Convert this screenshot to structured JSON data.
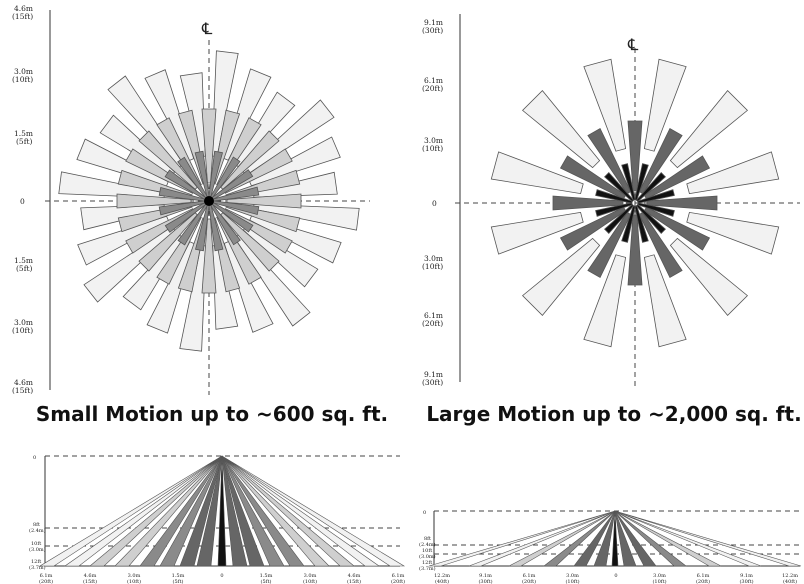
{
  "diagrams": {
    "small": {
      "caption": "Small Motion up to ~600 sq. ft.",
      "centerline_symbol": "℄",
      "labels": [
        {
          "m": "4.6m",
          "ft": "(15ft)"
        },
        {
          "m": "3.0m",
          "ft": "(10ft)"
        },
        {
          "m": "1.5m",
          "ft": "(5ft)"
        },
        {
          "m": "0",
          "ft": ""
        },
        {
          "m": "1.5m",
          "ft": "(5ft)"
        },
        {
          "m": "3.0m",
          "ft": "(10ft)"
        },
        {
          "m": "4.6m",
          "ft": "(15ft)"
        }
      ]
    },
    "large": {
      "caption": "Large Motion up to ~2,000 sq. ft.",
      "centerline_symbol": "℄",
      "labels": [
        {
          "m": "9.1m",
          "ft": "(30ft)"
        },
        {
          "m": "6.1m",
          "ft": "(20ft)"
        },
        {
          "m": "3.0m",
          "ft": "(10ft)"
        },
        {
          "m": "0",
          "ft": ""
        },
        {
          "m": "3.0m",
          "ft": "(10ft)"
        },
        {
          "m": "6.1m",
          "ft": "(20ft)"
        },
        {
          "m": "9.1m",
          "ft": "(30ft)"
        }
      ]
    },
    "side_small": {
      "top_label": "0",
      "height_labels": [
        {
          "a": "8ft",
          "b": "(2.4m)"
        },
        {
          "a": "10ft",
          "b": "(3.0m)"
        },
        {
          "a": "12ft",
          "b": "(3.7m)"
        }
      ],
      "bottom_labels": [
        {
          "m": "6.1m",
          "ft": "(20ft)"
        },
        {
          "m": "4.6m",
          "ft": "(15ft)"
        },
        {
          "m": "3.0m",
          "ft": "(10ft)"
        },
        {
          "m": "1.5m",
          "ft": "(5ft)"
        },
        {
          "m": "0",
          "ft": ""
        },
        {
          "m": "1.5m",
          "ft": "(5ft)"
        },
        {
          "m": "3.0m",
          "ft": "(10ft)"
        },
        {
          "m": "4.6m",
          "ft": "(15ft)"
        },
        {
          "m": "6.1m",
          "ft": "(20ft)"
        }
      ]
    },
    "side_large": {
      "top_label": "0",
      "height_labels": [
        {
          "a": "8ft",
          "b": "(2.4m)"
        },
        {
          "a": "10ft",
          "b": "(3.0m)"
        },
        {
          "a": "12ft",
          "b": "(3.7m)"
        }
      ],
      "bottom_labels": [
        {
          "m": "12.2m",
          "ft": "(40ft)"
        },
        {
          "m": "9.1m",
          "ft": "(30ft)"
        },
        {
          "m": "6.1m",
          "ft": "(20ft)"
        },
        {
          "m": "3.0m",
          "ft": "(10ft)"
        },
        {
          "m": "0",
          "ft": ""
        },
        {
          "m": "3.0m",
          "ft": "(10ft)"
        },
        {
          "m": "6.1m",
          "ft": "(20ft)"
        },
        {
          "m": "9.1m",
          "ft": "(30ft)"
        },
        {
          "m": "12.2m",
          "ft": "(40ft)"
        }
      ]
    }
  },
  "colors": {
    "light": "#f2f2f2",
    "mid": "#cfcfcf",
    "dark": "#8a8a8a",
    "darker": "#666666",
    "black": "#111111",
    "stroke": "#555555"
  }
}
